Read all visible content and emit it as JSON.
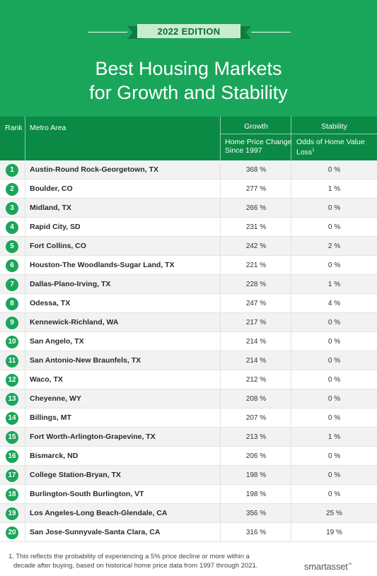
{
  "header": {
    "edition": "2022 EDITION",
    "title_line1": "Best Housing Markets",
    "title_line2": "for Growth and Stability"
  },
  "table": {
    "col_rank": "Rank",
    "col_metro": "Metro Area",
    "group_growth": "Growth",
    "group_stability": "Stability",
    "sub_growth_line1": "Home Price Change",
    "sub_growth_line2": "Since 1997",
    "sub_stability_line1": "Odds of Home Value",
    "sub_stability_line2": "Loss",
    "sub_stability_mark": "1",
    "rows": [
      {
        "rank": "1",
        "metro": "Austin-Round Rock-Georgetown, TX",
        "growth": "368 %",
        "stability": "0 %"
      },
      {
        "rank": "2",
        "metro": "Boulder, CO",
        "growth": "277 %",
        "stability": "1 %"
      },
      {
        "rank": "3",
        "metro": "Midland, TX",
        "growth": "266 %",
        "stability": "0 %"
      },
      {
        "rank": "4",
        "metro": "Rapid City, SD",
        "growth": "231 %",
        "stability": "0 %"
      },
      {
        "rank": "5",
        "metro": "Fort Collins, CO",
        "growth": "242 %",
        "stability": "2 %"
      },
      {
        "rank": "6",
        "metro": "Houston-The Woodlands-Sugar Land, TX",
        "growth": "221 %",
        "stability": "0 %"
      },
      {
        "rank": "7",
        "metro": "Dallas-Plano-Irving, TX",
        "growth": "228 %",
        "stability": "1 %"
      },
      {
        "rank": "8",
        "metro": "Odessa, TX",
        "growth": "247 %",
        "stability": "4 %"
      },
      {
        "rank": "9",
        "metro": "Kennewick-Richland, WA",
        "growth": "217 %",
        "stability": "0 %"
      },
      {
        "rank": "10",
        "metro": "San Angelo, TX",
        "growth": "214 %",
        "stability": "0 %"
      },
      {
        "rank": "11",
        "metro": "San Antonio-New Braunfels, TX",
        "growth": "214 %",
        "stability": "0 %"
      },
      {
        "rank": "12",
        "metro": "Waco, TX",
        "growth": "212 %",
        "stability": "0 %"
      },
      {
        "rank": "13",
        "metro": "Cheyenne, WY",
        "growth": "208 %",
        "stability": "0 %"
      },
      {
        "rank": "14",
        "metro": "Billings, MT",
        "growth": "207 %",
        "stability": "0 %"
      },
      {
        "rank": "15",
        "metro": "Fort Worth-Arlington-Grapevine, TX",
        "growth": "213 %",
        "stability": "1 %"
      },
      {
        "rank": "16",
        "metro": "Bismarck, ND",
        "growth": "206 %",
        "stability": "0 %"
      },
      {
        "rank": "17",
        "metro": "College Station-Bryan, TX",
        "growth": "198 %",
        "stability": "0 %"
      },
      {
        "rank": "18",
        "metro": "Burlington-South Burlington, VT",
        "growth": "198 %",
        "stability": "0 %"
      },
      {
        "rank": "19",
        "metro": "Los Angeles-Long Beach-Glendale, CA",
        "growth": "356 %",
        "stability": "25 %"
      },
      {
        "rank": "20",
        "metro": "San Jose-Sunnyvale-Santa Clara, CA",
        "growth": "316 %",
        "stability": "19 %"
      }
    ]
  },
  "footnote_line1": "1. This reflects the probability of experiencing a 5% price decline or more within a",
  "footnote_line2": "decade after buying, based on historical home price data from 1997 through 2021.",
  "logo": {
    "text": "smartasset",
    "mark": "™"
  },
  "colors": {
    "brand_green": "#1aa65a",
    "header_dark_green": "#0b8a45",
    "row_alt": "#f2f2f2"
  }
}
